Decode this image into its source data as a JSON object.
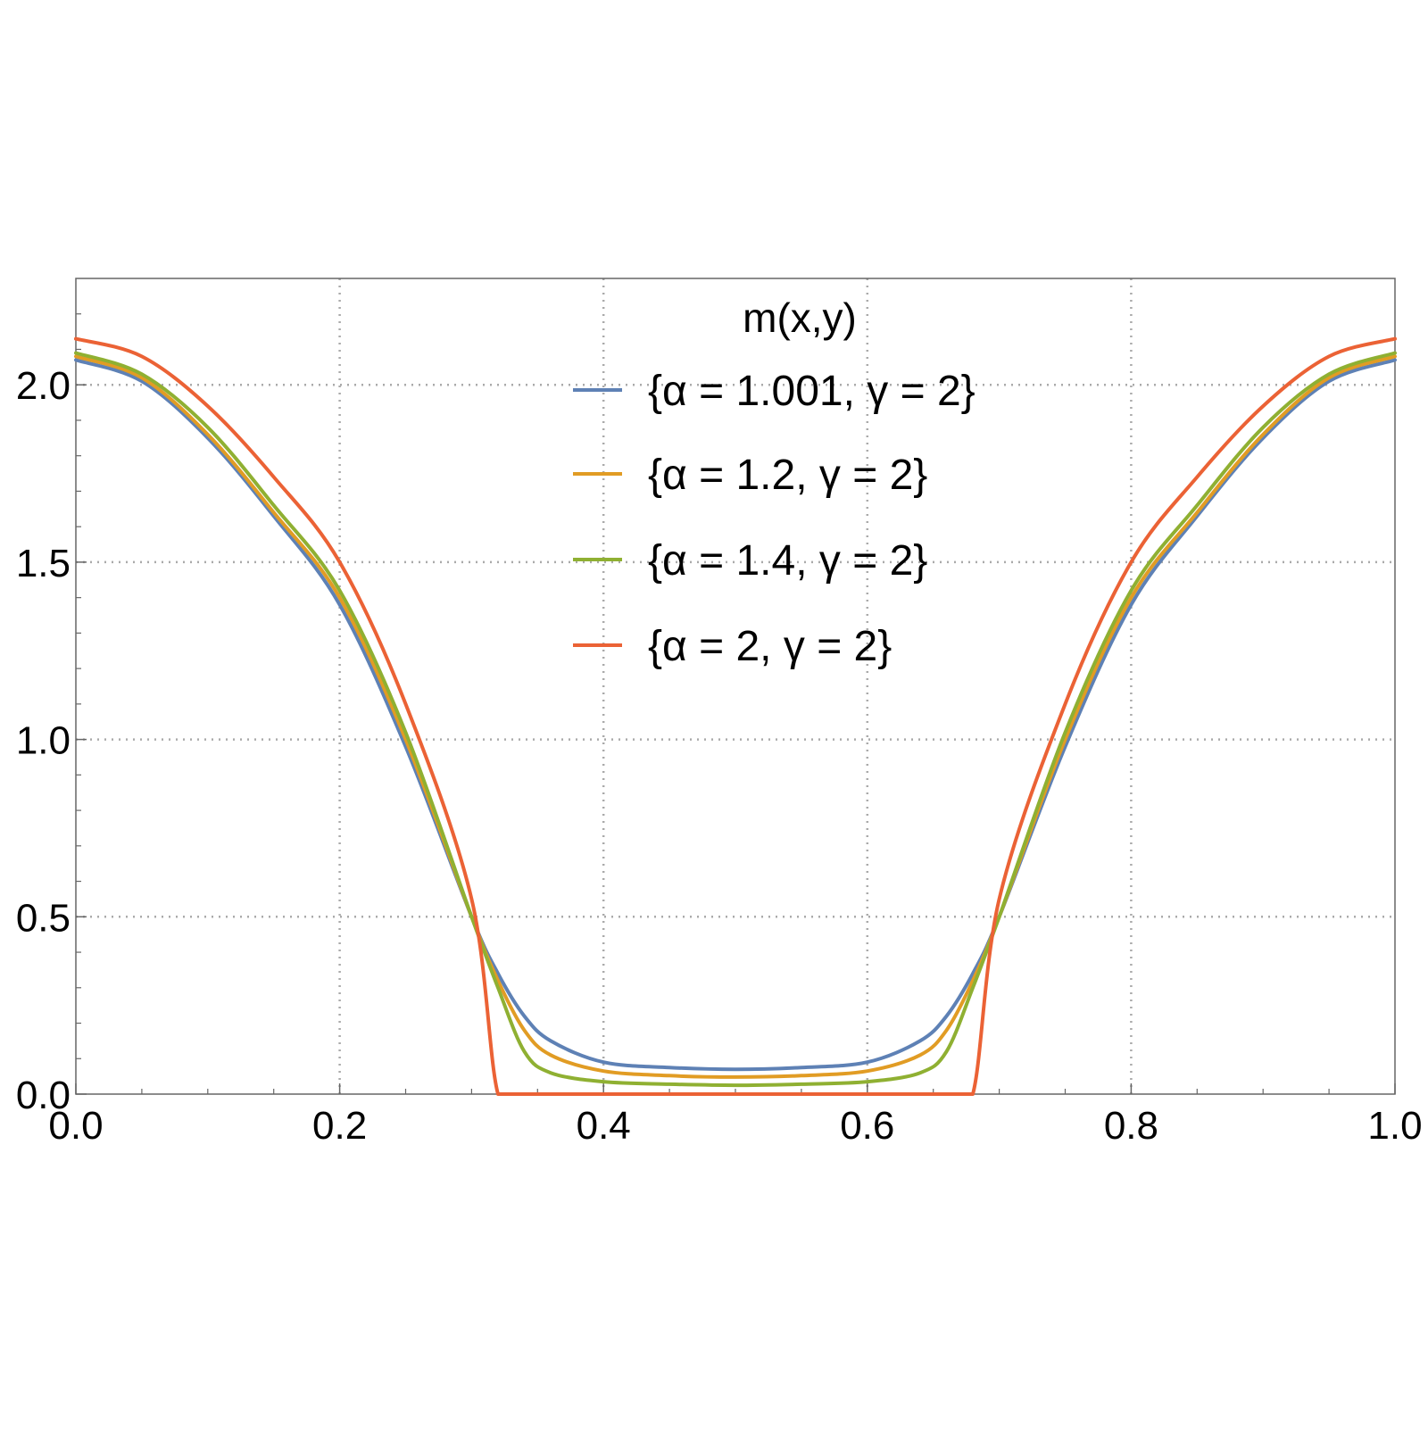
{
  "chart_data": {
    "type": "line",
    "title": "",
    "xlabel": "",
    "ylabel": "",
    "xlim": [
      0.0,
      1.0
    ],
    "ylim": [
      0.0,
      2.3
    ],
    "grid": true,
    "legend": {
      "title": "m(x,y)",
      "placement": "top-center"
    },
    "x_ticks": [
      {
        "value": 0.0,
        "label": "0.0"
      },
      {
        "value": 0.2,
        "label": "0.2"
      },
      {
        "value": 0.4,
        "label": "0.4"
      },
      {
        "value": 0.6,
        "label": "0.6"
      },
      {
        "value": 0.8,
        "label": "0.8"
      },
      {
        "value": 1.0,
        "label": "1.0"
      }
    ],
    "y_ticks": [
      {
        "value": 0.0,
        "label": "0.0"
      },
      {
        "value": 0.5,
        "label": "0.5"
      },
      {
        "value": 1.0,
        "label": "1.0"
      },
      {
        "value": 1.5,
        "label": "1.5"
      },
      {
        "value": 2.0,
        "label": "2.0"
      }
    ],
    "x": [
      0.0,
      0.05,
      0.1,
      0.15,
      0.2,
      0.25,
      0.3,
      0.32,
      0.34,
      0.36,
      0.4,
      0.45,
      0.5,
      0.55,
      0.6,
      0.64,
      0.66,
      0.68,
      0.7,
      0.75,
      0.8,
      0.85,
      0.9,
      0.95,
      1.0
    ],
    "series": [
      {
        "name": "{α = 1.001, γ = 2}",
        "color": "#5e81b5",
        "values": [
          2.07,
          2.01,
          1.85,
          1.63,
          1.38,
          0.98,
          0.5,
          0.34,
          0.22,
          0.15,
          0.09,
          0.075,
          0.07,
          0.075,
          0.09,
          0.15,
          0.22,
          0.34,
          0.5,
          0.98,
          1.38,
          1.63,
          1.85,
          2.01,
          2.07
        ]
      },
      {
        "name": "{α = 1.2, γ = 2}",
        "color": "#e19c24",
        "values": [
          2.08,
          2.02,
          1.86,
          1.64,
          1.4,
          1.0,
          0.5,
          0.32,
          0.18,
          0.11,
          0.065,
          0.052,
          0.048,
          0.052,
          0.065,
          0.11,
          0.18,
          0.32,
          0.5,
          1.0,
          1.4,
          1.64,
          1.86,
          2.02,
          2.08
        ]
      },
      {
        "name": "{α = 1.4, γ = 2}",
        "color": "#8fb032",
        "values": [
          2.09,
          2.03,
          1.88,
          1.66,
          1.42,
          1.02,
          0.5,
          0.3,
          0.12,
          0.06,
          0.035,
          0.028,
          0.025,
          0.028,
          0.035,
          0.06,
          0.12,
          0.3,
          0.5,
          1.02,
          1.42,
          1.66,
          1.88,
          2.03,
          2.09
        ]
      },
      {
        "name": "{α = 2, γ = 2}",
        "color": "#eb6235",
        "values": [
          2.13,
          2.08,
          1.94,
          1.74,
          1.5,
          1.1,
          0.55,
          0.0,
          0.0,
          0.0,
          0.0,
          0.0,
          0.0,
          0.0,
          0.0,
          0.0,
          0.0,
          0.0,
          0.55,
          1.1,
          1.5,
          1.74,
          1.94,
          2.08,
          2.13
        ]
      }
    ]
  }
}
